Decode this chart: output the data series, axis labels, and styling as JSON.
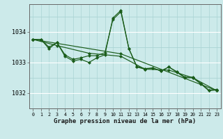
{
  "title": "Graphe pression niveau de la mer (hPa)",
  "bg_color": "#cceaea",
  "grid_color_h_major": "#ffffff",
  "grid_color_v": "#aad4d4",
  "grid_color_h_minor": "#aad4d4",
  "line_color": "#1a5c1a",
  "xlim": [
    -0.5,
    23.5
  ],
  "ylim": [
    1031.5,
    1034.9
  ],
  "yticks": [
    1032,
    1033,
    1034
  ],
  "xticks": [
    0,
    1,
    2,
    3,
    4,
    5,
    6,
    7,
    8,
    9,
    10,
    11,
    12,
    13,
    14,
    15,
    16,
    17,
    18,
    19,
    20,
    21,
    22,
    23
  ],
  "series": [
    {
      "x": [
        0,
        1,
        2,
        3,
        4,
        5,
        6,
        7,
        8,
        9,
        10,
        11,
        12,
        13,
        14,
        15,
        16,
        17,
        18,
        19,
        20,
        21,
        22,
        23
      ],
      "y": [
        1033.75,
        1033.75,
        1033.45,
        1033.65,
        1033.2,
        1033.05,
        1033.1,
        1033.0,
        1033.15,
        1033.25,
        1034.45,
        1034.7,
        1033.45,
        1032.85,
        1032.78,
        1032.82,
        1032.72,
        1032.85,
        1032.68,
        1032.5,
        1032.5,
        1032.3,
        1032.08,
        1032.1
      ]
    },
    {
      "x": [
        0,
        1,
        2,
        3,
        4,
        5,
        6,
        7,
        8,
        9,
        10,
        11,
        12,
        13,
        14,
        15,
        16,
        17,
        18,
        19,
        20,
        21,
        22,
        23
      ],
      "y": [
        1033.75,
        1033.75,
        1033.5,
        1033.65,
        1033.25,
        1033.1,
        1033.15,
        1033.22,
        1033.22,
        1033.32,
        1034.4,
        1034.65,
        1033.45,
        1032.87,
        1032.8,
        1032.82,
        1032.72,
        1032.85,
        1032.7,
        1032.52,
        1032.52,
        1032.32,
        1032.1,
        1032.12
      ]
    },
    {
      "x": [
        0,
        11,
        23
      ],
      "y": [
        1033.75,
        1033.28,
        1032.08
      ]
    },
    {
      "x": [
        0,
        3,
        7,
        11,
        14,
        17,
        20,
        23
      ],
      "y": [
        1033.75,
        1033.55,
        1033.3,
        1033.2,
        1032.78,
        1032.75,
        1032.5,
        1032.08
      ]
    }
  ]
}
